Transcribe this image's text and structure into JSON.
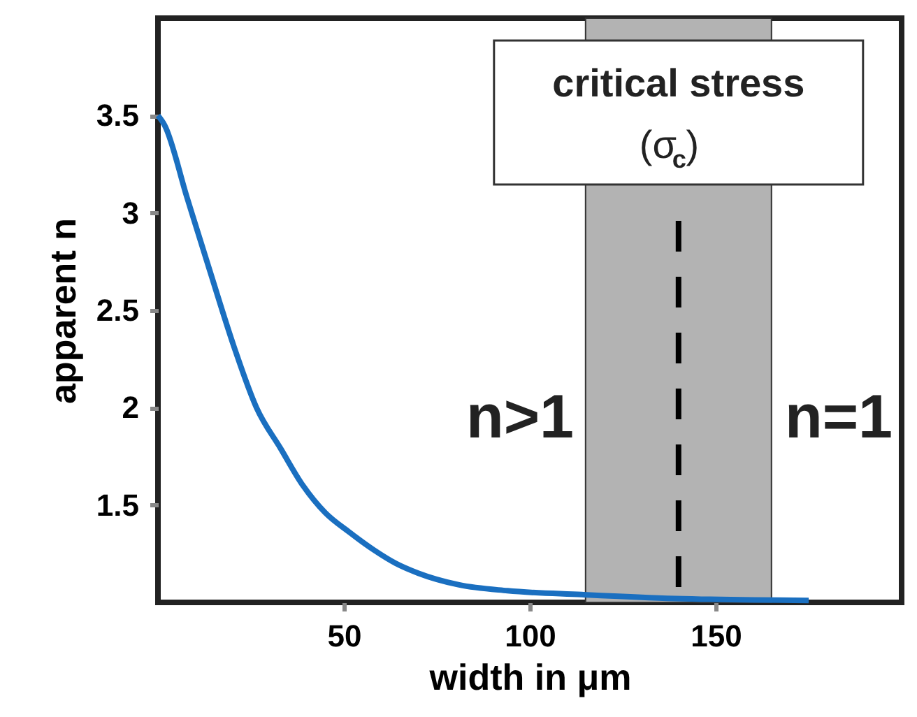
{
  "chart_data": {
    "type": "line",
    "xlabel": "width in μm",
    "ylabel": "apparent n",
    "xlim": [
      0,
      200
    ],
    "ylim": [
      1,
      4
    ],
    "xticks": [
      50,
      100,
      150
    ],
    "yticks": [
      1.5,
      2,
      2.5,
      3,
      3.5
    ],
    "grid": false,
    "marker": "none",
    "line_style": "solid",
    "series": [
      {
        "color": "#1a6fc0",
        "x": [
          0,
          1.8,
          7.8,
          14,
          20.5,
          26.5,
          33,
          39,
          45,
          51.5,
          58,
          64,
          70,
          81,
          94,
          114,
          139,
          175
        ],
        "values": [
          3.5,
          3.45,
          3.08,
          2.7,
          2.31,
          2.0,
          1.79,
          1.6,
          1.46,
          1.36,
          1.27,
          1.2,
          1.15,
          1.09,
          1.06,
          1.04,
          1.02,
          1.01
        ]
      }
    ],
    "bands": [
      {
        "axis": "x",
        "from": 115,
        "to": 165,
        "label": "critical stress\n(σ$_{c}$)",
        "color": "#b3b3b3"
      }
    ],
    "ref_lines": [
      {
        "axis": "x",
        "value": 140,
        "color": "#000000",
        "line_style": "dashed"
      }
    ],
    "annotations": [
      "n>1",
      "n=1"
    ]
  }
}
